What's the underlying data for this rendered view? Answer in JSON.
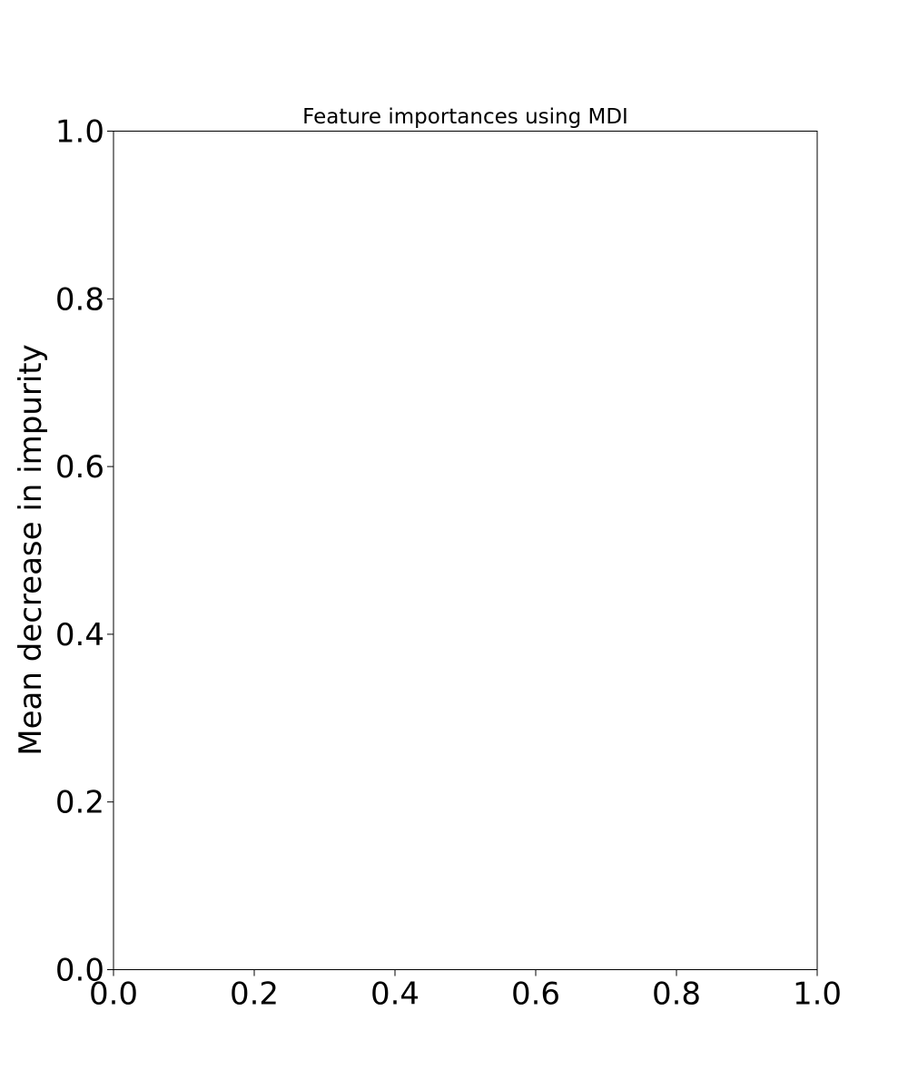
{
  "chart_data": {
    "type": "bar",
    "title": "Feature importances using MDI",
    "xlabel": "",
    "ylabel": "Mean decrease in impurity",
    "categories": [],
    "values": [],
    "xlim": [
      0.0,
      1.0
    ],
    "ylim": [
      0.0,
      1.0
    ],
    "x_ticks": [
      "0.0",
      "0.2",
      "0.4",
      "0.6",
      "0.8",
      "1.0"
    ],
    "y_ticks": [
      "0.0",
      "0.2",
      "0.4",
      "0.6",
      "0.8",
      "1.0"
    ],
    "grid": false,
    "legend": "none"
  }
}
